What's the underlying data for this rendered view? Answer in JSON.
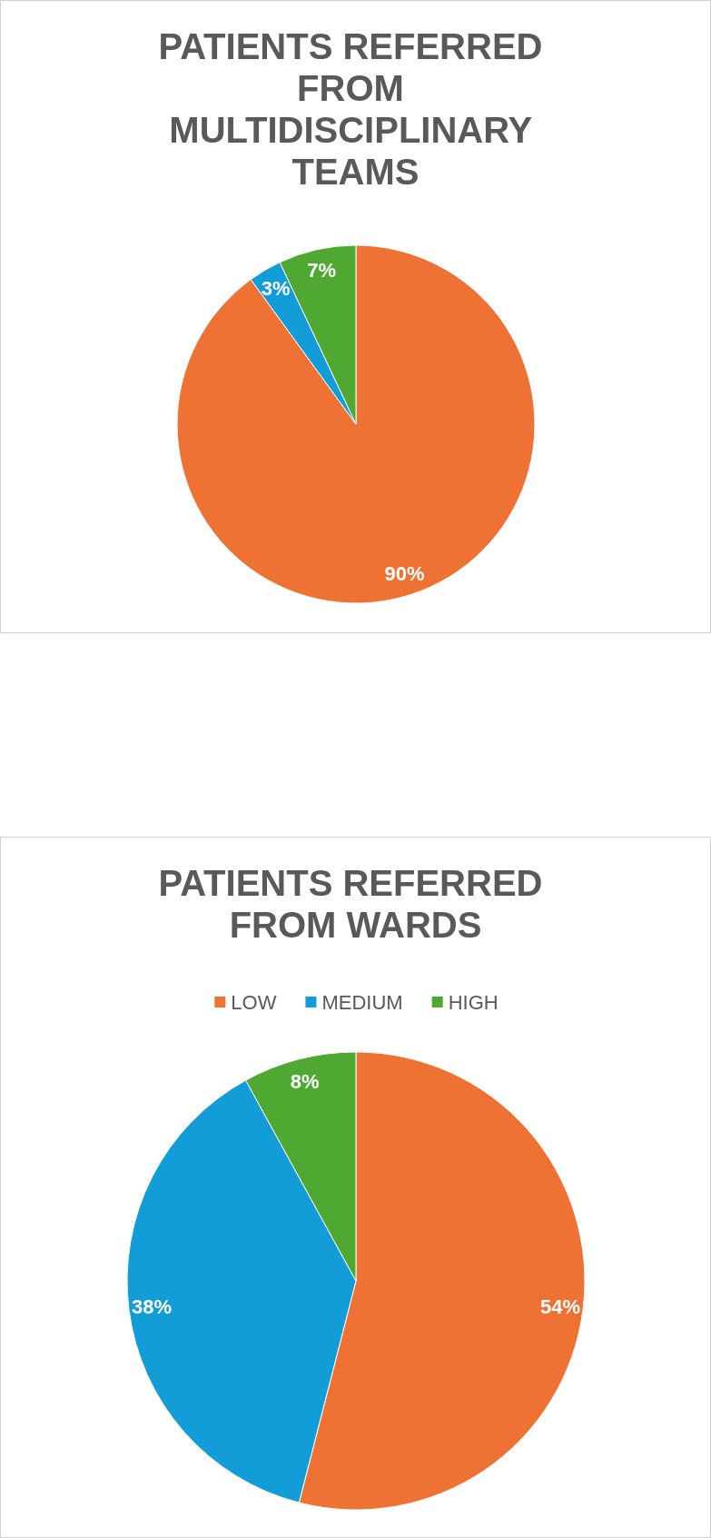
{
  "chart_data": [
    {
      "type": "pie",
      "title": "PATIENTS REFERRED FROM MULTIDISCIPLINARY TEAMS",
      "categories": [
        null,
        null,
        null
      ],
      "values": [
        90,
        3,
        7
      ],
      "colors": [
        "#ed7233",
        "#139dd8",
        "#4fa832"
      ],
      "value_labels": [
        "90%",
        "3%",
        "7%"
      ],
      "legend": false
    },
    {
      "type": "pie",
      "title": "PATIENTS REFERRED FROM WARDS",
      "categories": [
        "LOW",
        "MEDIUM",
        "HIGH"
      ],
      "values": [
        54,
        38,
        8
      ],
      "colors": [
        "#ed7233",
        "#139dd8",
        "#4fa832"
      ],
      "value_labels": [
        "54%",
        "38%",
        "8%"
      ],
      "legend": "top"
    }
  ]
}
